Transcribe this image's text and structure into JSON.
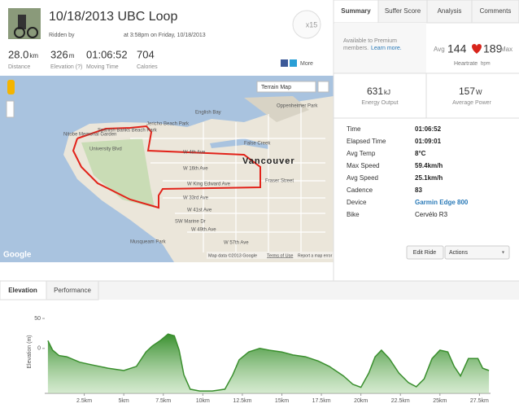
{
  "header": {
    "title": "10/18/2013 UBC Loop",
    "ridden_by": "Ridden by",
    "time_text": "at 3:58pm on Friday, 10/18/2013",
    "badge": "x15"
  },
  "stats": [
    {
      "value": "28.0",
      "unit": "km",
      "label": "Distance"
    },
    {
      "value": "326",
      "unit": "m",
      "label": "Elevation (?)"
    },
    {
      "value": "01:06:52",
      "label": "Moving Time"
    },
    {
      "value": "704",
      "label": "Calories"
    }
  ],
  "share": "More",
  "map": {
    "type_button": "Terrain Map",
    "city": "Vancouver",
    "labels": [
      "English Bay",
      "Jericho Beach Park",
      "Spanish Banks Beach Park",
      "Nitobe Memorial Garden",
      "University Blvd",
      "W 4th Ave",
      "W 16th Ave",
      "W King Edward Ave",
      "W 33rd Ave",
      "W 41st Ave",
      "SW Marine Dr",
      "W 49th Ave",
      "W 57th Ave",
      "Musqueam Park",
      "False Creek",
      "Oppenheimer Park",
      "Fraser Street"
    ],
    "attribution": "Map data ©2013 Google",
    "terms": "Terms of Use",
    "report": "Report a map error",
    "logo": "Google"
  },
  "tabs": [
    "Summary",
    "Suffer Score",
    "Analysis",
    "Comments"
  ],
  "premium": {
    "text": "Available to Premium",
    "text2": "members.",
    "link": "Learn more."
  },
  "heartrate": {
    "avg_label": "Avg",
    "avg": "144",
    "max": "189",
    "max_label": "Max",
    "label": "Heartrate",
    "unit": "bpm"
  },
  "energy": {
    "value": "631",
    "unit": "kJ",
    "label": "Energy Output"
  },
  "power": {
    "value": "157",
    "unit": "W",
    "label": "Average Power"
  },
  "details": [
    [
      "Time",
      "01:06:52"
    ],
    [
      "Elapsed Time",
      "01:09:01"
    ],
    [
      "Avg Temp",
      "8°C"
    ],
    [
      "Max Speed",
      "59.4km/h"
    ],
    [
      "Avg Speed",
      "25.1km/h"
    ],
    [
      "Cadence",
      "83"
    ],
    [
      "Device",
      "Garmin Edge 800"
    ],
    [
      "Bike",
      "Cervélo R3"
    ]
  ],
  "buttons": [
    "Edit Ride",
    "Actions"
  ],
  "bottom_tabs": [
    "Elevation",
    "Performance"
  ],
  "chart_data": {
    "type": "area",
    "ylabel": "Elevation (m)",
    "color": "#3a8f2e",
    "x": [
      0.2,
      0.5,
      0.9,
      1.4,
      2.2,
      2.9,
      4.0,
      5.0,
      5.8,
      6.4,
      6.8,
      7.3,
      7.8,
      8.2,
      8.5,
      8.8,
      9.2,
      9.8,
      10.6,
      11.4,
      11.9,
      12.3,
      12.9,
      13.6,
      14.2,
      15.0,
      15.7,
      16.5,
      17.3,
      18.0,
      18.9,
      19.5,
      20.0,
      20.5,
      20.9,
      21.3,
      21.8,
      22.4,
      23.0,
      23.5,
      24.0,
      24.5,
      25.0,
      25.5,
      25.9,
      26.3,
      26.8,
      27.4,
      27.7,
      28.1
    ],
    "elevation": [
      13,
      -3,
      -12,
      -14,
      -23,
      -27,
      -33,
      -37,
      -30,
      -6,
      4,
      13,
      24,
      21,
      -3,
      -44,
      -68,
      -71,
      -71,
      -68,
      -44,
      -19,
      -6,
      0,
      -3,
      -6,
      -11,
      -14,
      -21,
      -30,
      -46,
      -60,
      -65,
      -41,
      -14,
      -3,
      -17,
      -41,
      -57,
      -64,
      -51,
      -17,
      -3,
      -6,
      -30,
      -46,
      -17,
      -17,
      -33,
      -37
    ],
    "xlim": [
      0,
      28.2
    ],
    "ylim": [
      -75,
      65
    ],
    "xticks": [
      {
        "value": 2.5,
        "label": "2.5km"
      },
      {
        "value": 5,
        "label": "5km"
      },
      {
        "value": 7.5,
        "label": "7.5km"
      },
      {
        "value": 10,
        "label": "10km"
      },
      {
        "value": 12.5,
        "label": "12.5km"
      },
      {
        "value": 15,
        "label": "15km"
      },
      {
        "value": 17.5,
        "label": "17.5km"
      },
      {
        "value": 20,
        "label": "20km"
      },
      {
        "value": 22.5,
        "label": "22.5km"
      },
      {
        "value": 25,
        "label": "25km"
      },
      {
        "value": 27.5,
        "label": "27.5km"
      }
    ],
    "yticks": [
      0,
      50
    ]
  }
}
